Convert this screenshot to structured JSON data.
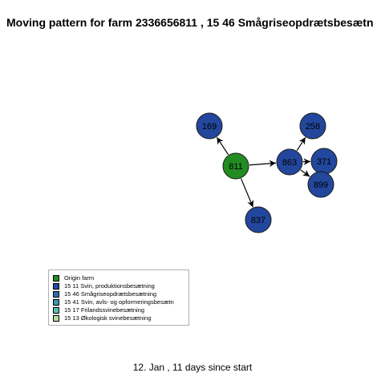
{
  "title": "Moving pattern for farm 2336656811 , 15 46 Smågriseopdrætsbesætn",
  "footer": "12. Jan ,  11 days since start",
  "colors": {
    "origin": "#228B22",
    "node_fill": "#23479C",
    "node_stroke": "#1a1a1a",
    "edge": "#000000"
  },
  "nodes": [
    {
      "id": "811",
      "type": "origin"
    },
    {
      "id": "169",
      "type": "15 11"
    },
    {
      "id": "837",
      "type": "15 11"
    },
    {
      "id": "863",
      "type": "15 11"
    },
    {
      "id": "258",
      "type": "15 11"
    },
    {
      "id": "371",
      "type": "15 11"
    },
    {
      "id": "899",
      "type": "15 11"
    }
  ],
  "edges": [
    {
      "from": "811",
      "to": "169"
    },
    {
      "from": "811",
      "to": "837"
    },
    {
      "from": "811",
      "to": "863"
    },
    {
      "from": "863",
      "to": "258"
    },
    {
      "from": "863",
      "to": "371"
    },
    {
      "from": "863",
      "to": "899"
    }
  ],
  "legend": [
    {
      "label": "Origin farm",
      "color": "#228B22"
    },
    {
      "label": "15 11 Svin, produktionsbesætning",
      "color": "#23479C"
    },
    {
      "label": "15 46 Smågriseopdrætsbesætning",
      "color": "#2E6FA8"
    },
    {
      "label": "15 41 Svin, avls- og opformeringsbesætn",
      "color": "#3C96B0"
    },
    {
      "label": "15 17 Frilandssvinebesætning",
      "color": "#5CBFAE"
    },
    {
      "label": "15 13 Økologisk svinebesætning",
      "color": "#B5DDA4"
    }
  ]
}
